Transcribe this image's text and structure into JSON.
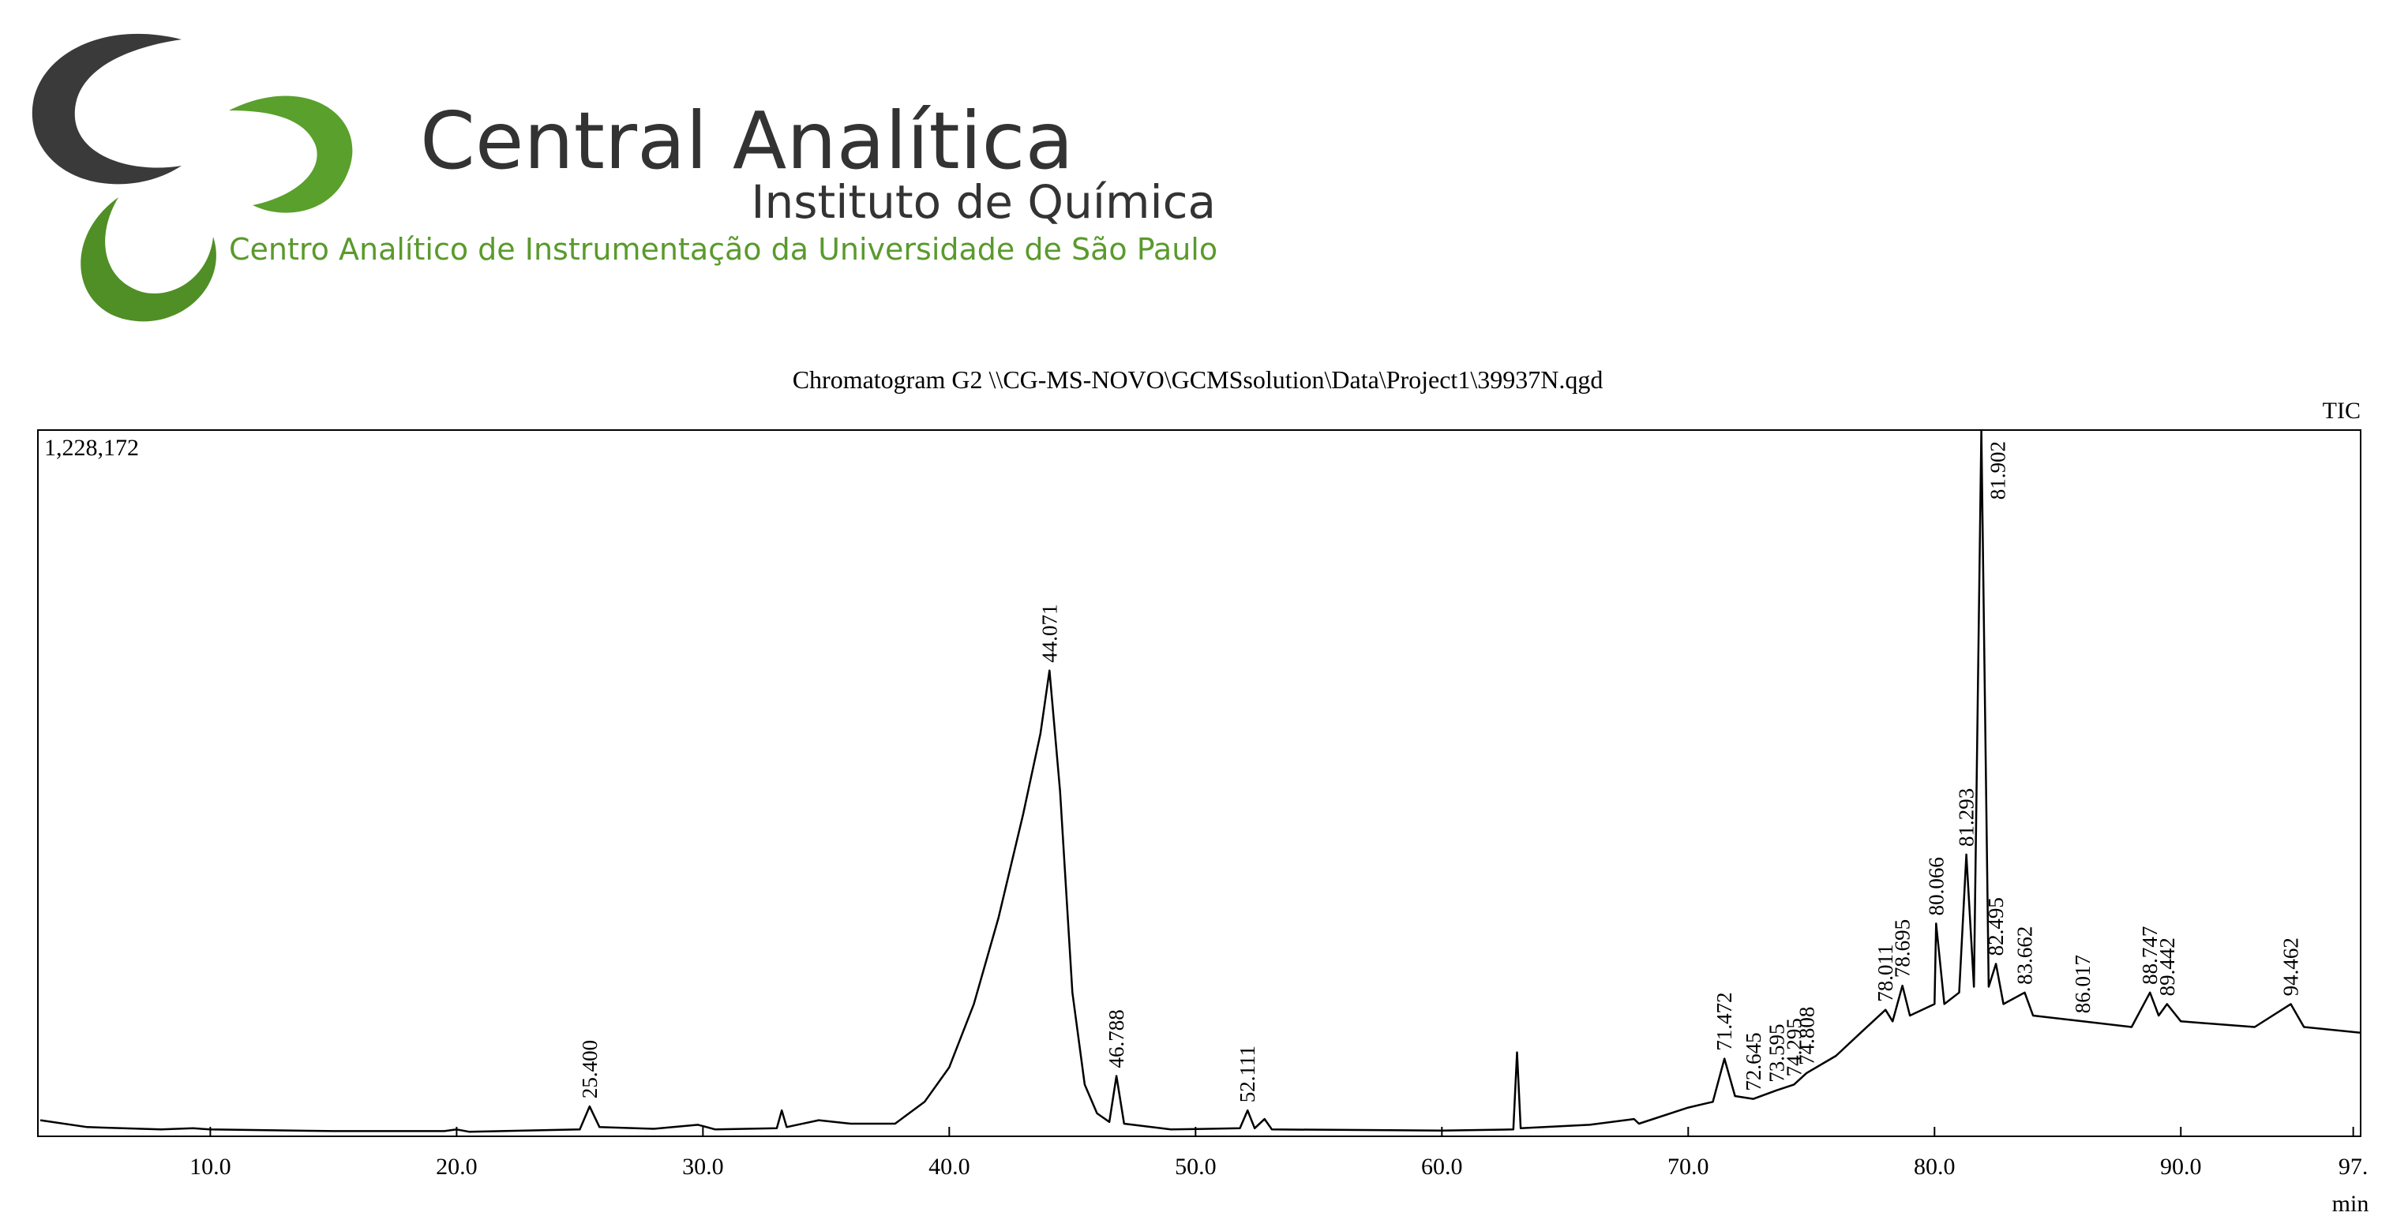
{
  "header": {
    "title": "Central Analítica",
    "subtitle": "Instituto de Química",
    "tagline": "Centro Analítico de Instrumentação da Universidade de São Paulo"
  },
  "chart_data": {
    "type": "line",
    "title": "Chromatogram G2 \\\\CG-MS-NOVO\\GCMSsolution\\Data\\Project1\\39937N.qgd",
    "x_label": "min",
    "x": [
      3.1,
      5,
      8,
      9.3,
      10,
      15,
      19.5,
      20,
      20.5,
      25,
      25.4,
      25.8,
      28,
      29.8,
      30.5,
      33,
      33.2,
      33.4,
      34.7,
      36,
      37.8,
      39,
      40,
      41,
      42,
      43,
      43.7,
      44.071,
      44.5,
      45,
      45.5,
      46,
      46.5,
      46.788,
      47.1,
      49,
      51.8,
      52.111,
      52.4,
      52.8,
      53.1,
      60,
      62.9,
      63.05,
      63.2,
      66,
      67.8,
      68,
      70,
      71,
      71.472,
      71.9,
      72.645,
      73.595,
      74.295,
      74.808,
      76,
      77,
      78.011,
      78.3,
      78.695,
      79,
      80,
      80.066,
      80.4,
      81,
      81.293,
      81.6,
      81.902,
      82.2,
      82.495,
      82.8,
      83.662,
      84,
      86.017,
      88,
      88.747,
      89.1,
      89.442,
      90,
      93,
      94.462,
      95,
      97.3
    ],
    "series": [
      {
        "name": "TIC",
        "color": "#000000",
        "values": [
          28000,
          16000,
          12000,
          14000,
          12000,
          9000,
          9000,
          12000,
          8000,
          12000,
          52000,
          16000,
          13000,
          20000,
          12000,
          14000,
          45000,
          16000,
          28000,
          22000,
          22000,
          60000,
          120000,
          230000,
          380000,
          560000,
          700000,
          810000,
          600000,
          250000,
          90000,
          40000,
          25000,
          105000,
          22000,
          12000,
          14000,
          45000,
          14000,
          30000,
          12000,
          10000,
          12000,
          146000,
          14000,
          20000,
          30000,
          22000,
          50000,
          60000,
          135000,
          70000,
          65000,
          80000,
          90000,
          110000,
          140000,
          180000,
          220000,
          200000,
          262000,
          210000,
          230000,
          370000,
          230000,
          250000,
          490000,
          260000,
          1228172,
          260000,
          300000,
          230000,
          250000,
          210000,
          200000,
          190000,
          250000,
          210000,
          230000,
          200000,
          190000,
          230000,
          190000,
          180000
        ]
      }
    ],
    "peaks": [
      {
        "value": 25.4,
        "label": "25.400"
      },
      {
        "value": 44.071,
        "label": "44.071"
      },
      {
        "value": 46.788,
        "label": "46.788"
      },
      {
        "value": 52.111,
        "label": "52.111"
      },
      {
        "value": 71.472,
        "label": "71.472"
      },
      {
        "value": 72.645,
        "label": "72.645"
      },
      {
        "value": 73.595,
        "label": "73.595"
      },
      {
        "value": 74.295,
        "label": "74.295"
      },
      {
        "value": 74.808,
        "label": "74.808"
      },
      {
        "value": 78.011,
        "label": "78.011"
      },
      {
        "value": 78.695,
        "label": "78.695"
      },
      {
        "value": 80.066,
        "label": "80.066"
      },
      {
        "value": 81.293,
        "label": "81.293"
      },
      {
        "value": 81.902,
        "label": "81.902"
      },
      {
        "value": 82.495,
        "label": "82.495"
      },
      {
        "value": 83.662,
        "label": "83.662"
      },
      {
        "value": 86.017,
        "label": "86.017"
      },
      {
        "value": 88.747,
        "label": "88.747"
      },
      {
        "value": 89.442,
        "label": "89.442"
      },
      {
        "value": 94.462,
        "label": "94.462"
      }
    ],
    "xlim": [
      3,
      97.3
    ],
    "xticks": [
      {
        "value": 10,
        "label": "10.0"
      },
      {
        "value": 20,
        "label": "20.0"
      },
      {
        "value": 30,
        "label": "30.0"
      },
      {
        "value": 40,
        "label": "40.0"
      },
      {
        "value": 50,
        "label": "50.0"
      },
      {
        "value": 60,
        "label": "60.0"
      },
      {
        "value": 70,
        "label": "70.0"
      },
      {
        "value": 80,
        "label": "80.0"
      },
      {
        "value": 90,
        "label": "90.0"
      },
      {
        "value": 97,
        "label": "97."
      }
    ],
    "ylim": [
      0,
      1228172
    ],
    "yticks": [
      {
        "value": 1228172,
        "label": "1,228,172"
      }
    ],
    "grid": false
  }
}
